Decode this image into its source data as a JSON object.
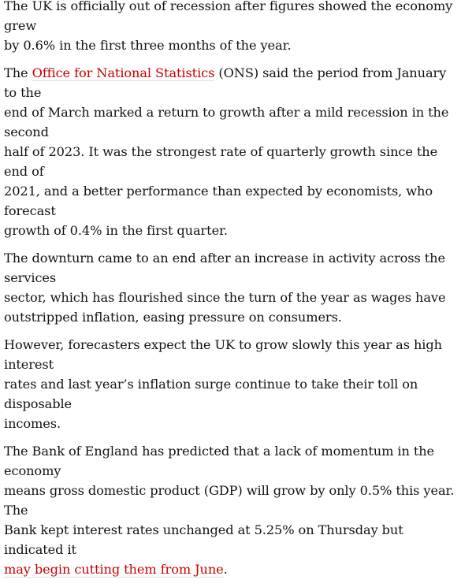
{
  "article": {
    "p1": "The UK is officially out of recession after figures showed the economy grew\nby 0.6% in the first three months of the year.",
    "p2": {
      "before": "The ",
      "link": "Office for National Statistics",
      "after": " (ONS) said the period from January to the\nend of March marked a return to growth after a mild recession in the second\nhalf of 2023. It was the strongest rate of quarterly growth since the end of\n2021, and a better performance than expected by economists, who forecast\ngrowth of 0.4% in the first quarter."
    },
    "p3": "The downturn came to an end after an increase in activity across the services\nsector, which has flourished since the turn of the year as wages have\noutstripped inflation, easing pressure on consumers.",
    "p4": "However, forecasters expect the UK to grow slowly this year as high interest\nrates and last year’s inflation surge continue to take their toll on disposable\nincomes.",
    "p5": {
      "before": "The Bank of England has predicted that a lack of momentum in the economy\nmeans gross domestic product (GDP) will grow by only 0.5% this year. The\nBank kept interest rates unchanged at 5.25% on Thursday but indicated it\n",
      "link": "may begin cutting them from June",
      "after": "."
    }
  },
  "colors": {
    "text": "#121212",
    "link": "#c70000",
    "background": "#ffffff"
  }
}
